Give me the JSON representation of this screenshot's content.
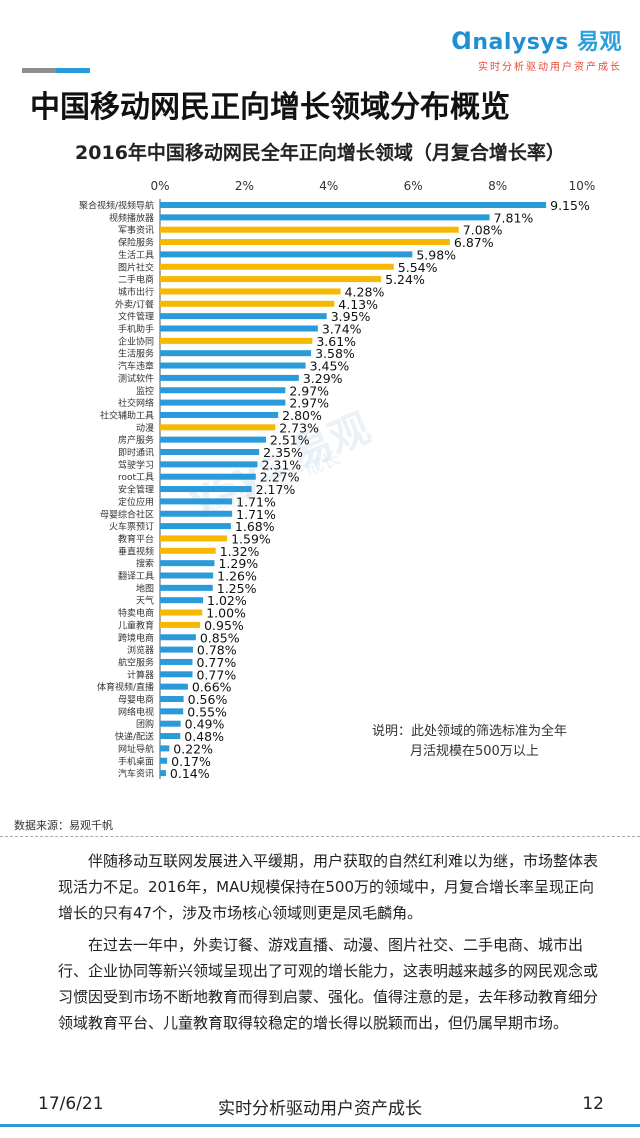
{
  "brand": {
    "logo_latin": "nalysys",
    "logo_cn": "易观",
    "tagline": "实时分析驱动用户资产成长"
  },
  "page_title": "中国移动网民正向增长领域分布概览",
  "chart_data": {
    "type": "bar",
    "orientation": "horizontal",
    "title": "2016年中国移动网民全年正向增长领域（月复合增长率）",
    "xlim": [
      0,
      10
    ],
    "x_ticks": [
      "0%",
      "2%",
      "4%",
      "6%",
      "8%",
      "10%"
    ],
    "colors": {
      "normal": "#2b9ad8",
      "highlight": "#f6b800"
    },
    "categories": [
      "聚合视频/视频导航",
      "视频播放器",
      "军事资讯",
      "保险服务",
      "生活工具",
      "图片社交",
      "二手电商",
      "城市出行",
      "外卖/订餐",
      "文件管理",
      "手机助手",
      "企业协同",
      "生活服务",
      "汽车违章",
      "测试软件",
      "监控",
      "社交网络",
      "社交辅助工具",
      "动漫",
      "房产服务",
      "即时通讯",
      "驾驶学习",
      "root工具",
      "安全管理",
      "定位应用",
      "母婴综合社区",
      "火车票预订",
      "教育平台",
      "垂直视频",
      "搜索",
      "翻译工具",
      "地图",
      "天气",
      "特卖电商",
      "儿童教育",
      "跨境电商",
      "浏览器",
      "航空服务",
      "计算器",
      "体育视频/直播",
      "母婴电商",
      "网络电视",
      "团购",
      "快递/配送",
      "网址导航",
      "手机桌面",
      "汽车资讯"
    ],
    "values": [
      9.15,
      7.81,
      7.08,
      6.87,
      5.98,
      5.54,
      5.24,
      4.28,
      4.13,
      3.95,
      3.74,
      3.61,
      3.58,
      3.45,
      3.29,
      2.97,
      2.97,
      2.8,
      2.73,
      2.51,
      2.35,
      2.31,
      2.27,
      2.17,
      1.71,
      1.71,
      1.68,
      1.59,
      1.32,
      1.29,
      1.26,
      1.25,
      1.02,
      1.0,
      0.95,
      0.85,
      0.78,
      0.77,
      0.77,
      0.66,
      0.56,
      0.55,
      0.49,
      0.48,
      0.22,
      0.17,
      0.14
    ],
    "data_labels": [
      "9.15%",
      "7.81%",
      "7.08%",
      "6.87%",
      "5.98%",
      "5.54%",
      "5.24%",
      "4.28%",
      "4.13%",
      "3.95%",
      "3.74%",
      "3.61%",
      "3.58%",
      "3.45%",
      "3.29%",
      "2.97%",
      "2.97%",
      "2.80%",
      "2.73%",
      "2.51%",
      "2.35%",
      "2.31%",
      "2.27%",
      "2.17%",
      "1.71%",
      "1.71%",
      "1.68%",
      "1.59%",
      "1.32%",
      "1.29%",
      "1.26%",
      "1.25%",
      "1.02%",
      "1.00%",
      "0.95%",
      "0.85%",
      "0.78%",
      "0.77%",
      "0.77%",
      "0.66%",
      "0.56%",
      "0.55%",
      "0.49%",
      "0.48%",
      "0.22%",
      "0.17%",
      "0.14%"
    ],
    "highlight": [
      false,
      false,
      true,
      true,
      false,
      true,
      true,
      true,
      true,
      false,
      false,
      true,
      false,
      false,
      false,
      false,
      false,
      false,
      true,
      false,
      false,
      false,
      false,
      false,
      false,
      false,
      false,
      true,
      true,
      false,
      false,
      false,
      false,
      true,
      true,
      false,
      false,
      false,
      false,
      false,
      false,
      false,
      false,
      false,
      false,
      false,
      false
    ],
    "grid": false,
    "legend": "none"
  },
  "note": {
    "line1": "说明：此处领域的筛选标准为全年",
    "line2": "月活规模在500万以上"
  },
  "source": "数据来源：易观千帆",
  "body": {
    "p1": "伴随移动互联网发展进入平缓期，用户获取的自然红利难以为继，市场整体表现活力不足。2016年，MAU规模保持在500万的领域中，月复合增长率呈现正向增长的只有47个，涉及市场核心领域则更是凤毛麟角。",
    "p2": "在过去一年中，外卖订餐、游戏直播、动漫、图片社交、二手电商、城市出行、企业协同等新兴领域呈现出了可观的增长能力，这表明越来越多的网民观念或习惯因受到市场不断地教育而得到启蒙、强化。值得注意的是，去年移动教育细分领域教育平台、儿童教育取得较稳定的增长得以脱颖而出，但仍属早期市场。"
  },
  "footer": {
    "date": "17/6/21",
    "center": "实时分析驱动用户资产成长",
    "page": "12"
  }
}
